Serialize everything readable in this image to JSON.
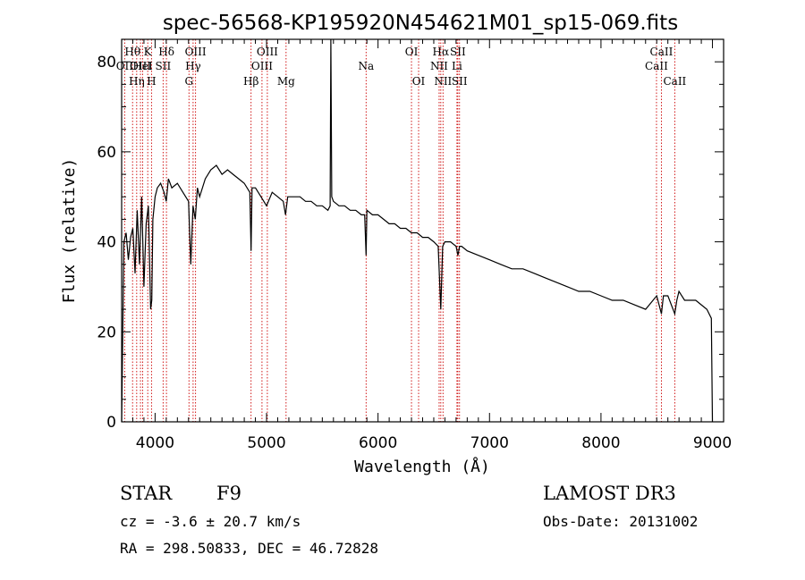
{
  "chart_data": {
    "type": "line",
    "title": "spec-56568-KP195920N454621M01_sp15-069.fits",
    "xlabel": "Wavelength (Å)",
    "ylabel": "Flux (relative)",
    "xlim": [
      3700,
      9100
    ],
    "ylim": [
      0,
      85
    ],
    "xticks": [
      4000,
      5000,
      6000,
      7000,
      8000,
      9000
    ],
    "yticks": [
      0,
      20,
      40,
      60,
      80
    ],
    "spectrum": {
      "name": "flux",
      "x": [
        3700,
        3720,
        3740,
        3760,
        3780,
        3800,
        3820,
        3840,
        3860,
        3880,
        3900,
        3920,
        3940,
        3960,
        3970,
        3980,
        4000,
        4020,
        4050,
        4080,
        4100,
        4120,
        4150,
        4200,
        4250,
        4300,
        4320,
        4340,
        4360,
        4380,
        4400,
        4450,
        4500,
        4550,
        4600,
        4650,
        4700,
        4750,
        4800,
        4850,
        4861,
        4870,
        4900,
        4950,
        5000,
        5050,
        5100,
        5150,
        5170,
        5190,
        5200,
        5250,
        5300,
        5350,
        5400,
        5450,
        5500,
        5550,
        5570,
        5577,
        5585,
        5600,
        5650,
        5700,
        5750,
        5800,
        5850,
        5880,
        5893,
        5900,
        5950,
        6000,
        6050,
        6100,
        6150,
        6200,
        6250,
        6300,
        6350,
        6400,
        6450,
        6500,
        6540,
        6563,
        6580,
        6600,
        6650,
        6700,
        6717,
        6731,
        6750,
        6800,
        6900,
        7000,
        7100,
        7200,
        7300,
        7400,
        7500,
        7600,
        7700,
        7800,
        7900,
        8000,
        8100,
        8200,
        8300,
        8400,
        8500,
        8542,
        8560,
        8600,
        8662,
        8680,
        8700,
        8750,
        8800,
        8850,
        8900,
        8950,
        8990,
        9000
      ],
      "y": [
        0,
        40,
        42,
        36,
        41,
        43,
        33,
        47,
        35,
        50,
        30,
        44,
        48,
        25,
        27,
        45,
        50,
        52,
        53,
        51,
        49,
        54,
        52,
        53,
        51,
        49,
        35,
        48,
        45,
        52,
        50,
        54,
        56,
        57,
        55,
        56,
        55,
        54,
        53,
        51,
        38,
        52,
        52,
        50,
        48,
        51,
        50,
        49,
        46,
        50,
        50,
        50,
        50,
        49,
        49,
        48,
        48,
        47,
        48,
        85,
        50,
        49,
        48,
        48,
        47,
        47,
        46,
        46,
        37,
        47,
        46,
        46,
        45,
        44,
        44,
        43,
        43,
        42,
        42,
        41,
        41,
        40,
        39,
        25,
        39,
        40,
        40,
        39,
        37,
        39,
        39,
        38,
        37,
        36,
        35,
        34,
        34,
        33,
        32,
        31,
        30,
        29,
        29,
        28,
        27,
        27,
        26,
        25,
        28,
        24,
        28,
        28,
        24,
        27,
        29,
        27,
        27,
        27,
        26,
        25,
        23,
        0
      ]
    },
    "lines": [
      {
        "name": "OII",
        "x": 3727,
        "tier": 2
      },
      {
        "name": "Hθ",
        "x": 3798,
        "tier": 1
      },
      {
        "name": "Hη",
        "x": 3835,
        "tier": 3
      },
      {
        "name": "OIII",
        "x": 3869,
        "tier": 2
      },
      {
        "name": "HeI",
        "x": 3889,
        "tier": 2
      },
      {
        "name": "K",
        "x": 3934,
        "tier": 1
      },
      {
        "name": "H",
        "x": 3968,
        "tier": 3
      },
      {
        "name": "SII",
        "x": 4072,
        "tier": 2
      },
      {
        "name": "Hδ",
        "x": 4102,
        "tier": 1
      },
      {
        "name": "G",
        "x": 4304,
        "tier": 3
      },
      {
        "name": "Hγ",
        "x": 4341,
        "tier": 2
      },
      {
        "name": "OIII",
        "x": 4363,
        "tier": 1
      },
      {
        "name": "Hβ",
        "x": 4861,
        "tier": 3
      },
      {
        "name": "OIII",
        "x": 4959,
        "tier": 2
      },
      {
        "name": "OIII",
        "x": 5007,
        "tier": 1
      },
      {
        "name": "Mg",
        "x": 5175,
        "tier": 3
      },
      {
        "name": "Na",
        "x": 5893,
        "tier": 2
      },
      {
        "name": "OI",
        "x": 6300,
        "tier": 1
      },
      {
        "name": "OI",
        "x": 6364,
        "tier": 3
      },
      {
        "name": "NII",
        "x": 6548,
        "tier": 2
      },
      {
        "name": "Hα",
        "x": 6563,
        "tier": 1
      },
      {
        "name": "NII",
        "x": 6583,
        "tier": 3
      },
      {
        "name": "Li",
        "x": 6708,
        "tier": 2
      },
      {
        "name": "SII",
        "x": 6716,
        "tier": 1
      },
      {
        "name": "SII",
        "x": 6731,
        "tier": 3
      },
      {
        "name": "CaII",
        "x": 8498,
        "tier": 2
      },
      {
        "name": "CaII",
        "x": 8542,
        "tier": 1
      },
      {
        "name": "CaII",
        "x": 8662,
        "tier": 3
      }
    ]
  },
  "info": {
    "object_class": "STAR",
    "subclass": "F9",
    "survey": "LAMOST DR3",
    "redshift": "cz = -3.6 ± 20.7 km/s",
    "obs_date": "Obs-Date: 20131002",
    "coords": "RA = 298.50833, DEC =  46.72828"
  },
  "colors": {
    "axis": "#000000",
    "spectrum": "#000000",
    "marker": "#cc0000"
  }
}
